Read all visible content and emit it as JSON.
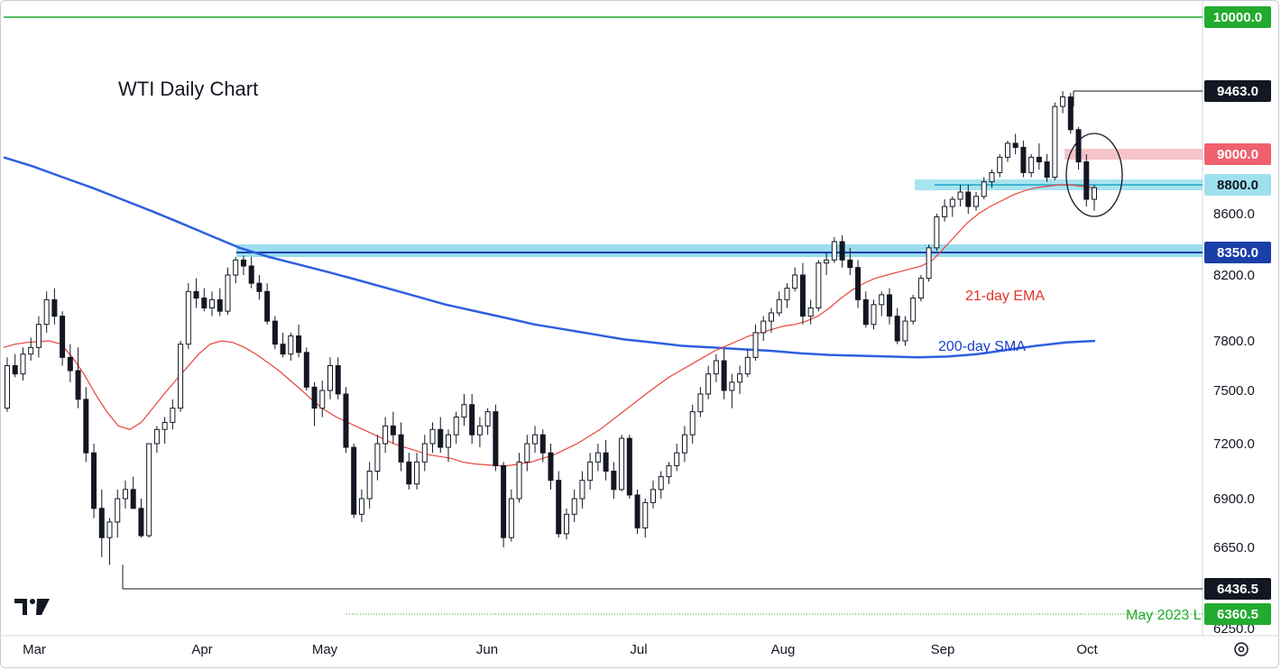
{
  "chart_data": {
    "type": "candlestick",
    "title": "WTI Daily Chart",
    "y_axis_ticks": [
      9463.0,
      9000.0,
      8800.0,
      8600.0,
      8350.0,
      8200.0,
      7800.0,
      7500.0,
      7200.0,
      6900.0,
      6650.0,
      6436.5,
      6360.5,
      6250.0
    ],
    "x_axis_labels": [
      "Mar",
      "Apr",
      "May",
      "Jun",
      "Jul",
      "Aug",
      "Sep",
      "Oct"
    ],
    "axis_range_y": [
      6250,
      10000
    ],
    "grid": false,
    "price_badges": [
      {
        "label": "10000.0",
        "value": 10000.0,
        "style": "green"
      },
      {
        "label": "9463.0",
        "value": 9463.0,
        "style": "black"
      },
      {
        "label": "9000.0",
        "value": 9000.0,
        "style": "red"
      },
      {
        "label": "8800.0",
        "value": 8800.0,
        "style": "cyan"
      },
      {
        "label": "8350.0",
        "value": 8350.0,
        "style": "navy"
      },
      {
        "label": "6436.5",
        "value": 6436.5,
        "style": "black"
      },
      {
        "label": "6360.5",
        "value": 6360.5,
        "style": "green"
      }
    ],
    "horizontal_levels": [
      {
        "value": 10000.0,
        "color": "#22ab2e"
      },
      {
        "value": 9463.0,
        "color": "#131722"
      },
      {
        "value": 9000.0,
        "color": "#f5a9b3"
      },
      {
        "value": 8800.0,
        "color": "#1aa8c8"
      },
      {
        "value": 8350.0,
        "color": "#1a3fa8"
      },
      {
        "value": 6436.5,
        "color": "#131722"
      },
      {
        "value": 6360.5,
        "color": "#22ab2e"
      }
    ],
    "annotations": {
      "ema_label": "21-day EMA",
      "sma_label": "200-day SMA",
      "may_low_label": "May 2023 L"
    },
    "series": [
      {
        "name": "WTI",
        "kind": "ohlc",
        "values": [
          [
            7400,
            7700,
            7380,
            7650
          ],
          [
            7650,
            7720,
            7580,
            7600
          ],
          [
            7600,
            7760,
            7560,
            7720
          ],
          [
            7720,
            7820,
            7680,
            7760
          ],
          [
            7760,
            7950,
            7700,
            7900
          ],
          [
            7900,
            8100,
            7850,
            8050
          ],
          [
            8050,
            8120,
            7900,
            7950
          ],
          [
            7950,
            7980,
            7650,
            7700
          ],
          [
            7700,
            7780,
            7550,
            7620
          ],
          [
            7620,
            7760,
            7400,
            7450
          ],
          [
            7450,
            7520,
            7100,
            7150
          ],
          [
            7150,
            7200,
            6800,
            6850
          ],
          [
            6850,
            6950,
            6600,
            6700
          ],
          [
            6700,
            6800,
            6560,
            6780
          ],
          [
            6780,
            6950,
            6700,
            6900
          ],
          [
            6900,
            7000,
            6850,
            6950
          ],
          [
            6950,
            7020,
            6900,
            6850
          ],
          [
            6850,
            6900,
            6700,
            6710
          ],
          [
            6710,
            7200,
            6700,
            7200
          ],
          [
            7200,
            7300,
            7150,
            7280
          ],
          [
            7280,
            7350,
            7200,
            7320
          ],
          [
            7320,
            7450,
            7280,
            7400
          ],
          [
            7400,
            7800,
            7380,
            7780
          ],
          [
            7780,
            8150,
            7750,
            8100
          ],
          [
            8100,
            8180,
            8000,
            8060
          ],
          [
            8060,
            8120,
            7980,
            8000
          ],
          [
            8000,
            8100,
            7950,
            8050
          ],
          [
            8050,
            8120,
            7950,
            7980
          ],
          [
            7980,
            8250,
            7960,
            8200
          ],
          [
            8200,
            8320,
            8150,
            8300
          ],
          [
            8300,
            8330,
            8200,
            8260
          ],
          [
            8260,
            8320,
            8120,
            8150
          ],
          [
            8150,
            8200,
            8050,
            8100
          ],
          [
            8100,
            8150,
            7900,
            7920
          ],
          [
            7920,
            7950,
            7750,
            7780
          ],
          [
            7780,
            7850,
            7700,
            7720
          ],
          [
            7720,
            7850,
            7680,
            7830
          ],
          [
            7830,
            7900,
            7700,
            7730
          ],
          [
            7730,
            7760,
            7500,
            7520
          ],
          [
            7520,
            7550,
            7300,
            7400
          ],
          [
            7400,
            7560,
            7350,
            7500
          ],
          [
            7500,
            7700,
            7450,
            7650
          ],
          [
            7650,
            7700,
            7450,
            7480
          ],
          [
            7480,
            7520,
            7150,
            7180
          ],
          [
            7180,
            7200,
            6800,
            6820
          ],
          [
            6820,
            6950,
            6780,
            6900
          ],
          [
            6900,
            7100,
            6850,
            7050
          ],
          [
            7050,
            7250,
            7000,
            7200
          ],
          [
            7200,
            7350,
            7150,
            7300
          ],
          [
            7300,
            7380,
            7200,
            7250
          ],
          [
            7250,
            7320,
            7050,
            7100
          ],
          [
            7100,
            7150,
            6950,
            6980
          ],
          [
            6980,
            7150,
            6950,
            7100
          ],
          [
            7100,
            7250,
            7050,
            7200
          ],
          [
            7200,
            7320,
            7150,
            7280
          ],
          [
            7280,
            7350,
            7150,
            7180
          ],
          [
            7180,
            7280,
            7100,
            7250
          ],
          [
            7250,
            7380,
            7200,
            7350
          ],
          [
            7350,
            7480,
            7300,
            7420
          ],
          [
            7420,
            7480,
            7200,
            7250
          ],
          [
            7250,
            7350,
            7180,
            7300
          ],
          [
            7300,
            7400,
            7250,
            7380
          ],
          [
            7380,
            7420,
            7050,
            7080
          ],
          [
            7080,
            7100,
            6650,
            6700
          ],
          [
            6700,
            6950,
            6680,
            6900
          ],
          [
            6900,
            7150,
            6880,
            7100
          ],
          [
            7100,
            7250,
            7050,
            7200
          ],
          [
            7200,
            7300,
            7150,
            7250
          ],
          [
            7250,
            7280,
            7100,
            7150
          ],
          [
            7150,
            7200,
            6950,
            7000
          ],
          [
            7000,
            7050,
            6700,
            6720
          ],
          [
            6720,
            6850,
            6690,
            6820
          ],
          [
            6820,
            6950,
            6780,
            6900
          ],
          [
            6900,
            7050,
            6850,
            7000
          ],
          [
            7000,
            7150,
            6950,
            7100
          ],
          [
            7100,
            7200,
            7050,
            7150
          ],
          [
            7150,
            7220,
            7000,
            7050
          ],
          [
            7050,
            7100,
            6900,
            6950
          ],
          [
            6950,
            7250,
            6940,
            7230
          ],
          [
            7230,
            7250,
            6900,
            6920
          ],
          [
            6920,
            6950,
            6720,
            6750
          ],
          [
            6750,
            6900,
            6700,
            6880
          ],
          [
            6880,
            7000,
            6850,
            6950
          ],
          [
            6950,
            7050,
            6900,
            7020
          ],
          [
            7020,
            7100,
            6980,
            7080
          ],
          [
            7080,
            7200,
            7050,
            7150
          ],
          [
            7150,
            7300,
            7100,
            7250
          ],
          [
            7250,
            7420,
            7200,
            7380
          ],
          [
            7380,
            7520,
            7350,
            7480
          ],
          [
            7480,
            7650,
            7450,
            7600
          ],
          [
            7600,
            7720,
            7550,
            7680
          ],
          [
            7680,
            7750,
            7450,
            7500
          ],
          [
            7500,
            7600,
            7400,
            7550
          ],
          [
            7550,
            7650,
            7480,
            7600
          ],
          [
            7600,
            7750,
            7580,
            7700
          ],
          [
            7700,
            7900,
            7680,
            7850
          ],
          [
            7850,
            7950,
            7800,
            7920
          ],
          [
            7920,
            8000,
            7850,
            7970
          ],
          [
            7970,
            8100,
            7950,
            8050
          ],
          [
            8050,
            8150,
            8000,
            8120
          ],
          [
            8120,
            8250,
            8100,
            8200
          ],
          [
            8200,
            8280,
            7900,
            7950
          ],
          [
            7950,
            8050,
            7900,
            8000
          ],
          [
            8000,
            8300,
            7980,
            8280
          ],
          [
            8280,
            8350,
            8200,
            8300
          ],
          [
            8300,
            8450,
            8280,
            8420
          ],
          [
            8420,
            8460,
            8250,
            8300
          ],
          [
            8300,
            8380,
            8200,
            8250
          ],
          [
            8250,
            8300,
            8000,
            8050
          ],
          [
            8050,
            8100,
            7880,
            7900
          ],
          [
            7900,
            8050,
            7870,
            8020
          ],
          [
            8020,
            8100,
            7950,
            8080
          ],
          [
            8080,
            8120,
            7900,
            7950
          ],
          [
            7950,
            8000,
            7780,
            7800
          ],
          [
            7800,
            7950,
            7770,
            7920
          ],
          [
            7920,
            8080,
            7900,
            8060
          ],
          [
            8060,
            8200,
            8040,
            8180
          ],
          [
            8180,
            8400,
            8160,
            8380
          ],
          [
            8380,
            8600,
            8360,
            8580
          ],
          [
            8580,
            8700,
            8550,
            8650
          ],
          [
            8650,
            8720,
            8580,
            8700
          ],
          [
            8700,
            8800,
            8650,
            8750
          ],
          [
            8750,
            8800,
            8600,
            8650
          ],
          [
            8650,
            8750,
            8620,
            8720
          ],
          [
            8720,
            8850,
            8700,
            8820
          ],
          [
            8820,
            8900,
            8780,
            8880
          ],
          [
            8880,
            9000,
            8850,
            8980
          ],
          [
            8980,
            9100,
            8950,
            9080
          ],
          [
            9080,
            9150,
            9000,
            9050
          ],
          [
            9050,
            9100,
            8850,
            8880
          ],
          [
            8880,
            9000,
            8850,
            8980
          ],
          [
            8980,
            9080,
            8900,
            8950
          ],
          [
            8950,
            9000,
            8820,
            8850
          ],
          [
            8850,
            9380,
            8830,
            9350
          ],
          [
            9350,
            9463,
            9300,
            9420
          ],
          [
            9420,
            9450,
            9150,
            9180
          ],
          [
            9180,
            9200,
            8900,
            8950
          ],
          [
            8950,
            9000,
            8650,
            8700
          ],
          [
            8700,
            8800,
            8620,
            8780
          ]
        ]
      },
      {
        "name": "21-day EMA",
        "kind": "line",
        "values": [
          7760,
          7780,
          7790,
          7795,
          7800,
          7780,
          7700,
          7600,
          7480,
          7380,
          7300,
          7280,
          7320,
          7400,
          7480,
          7560,
          7640,
          7720,
          7780,
          7800,
          7790,
          7760,
          7720,
          7670,
          7620,
          7560,
          7500,
          7440,
          7390,
          7350,
          7320,
          7290,
          7260,
          7230,
          7200,
          7180,
          7160,
          7140,
          7130,
          7120,
          7100,
          7090,
          7085,
          7080,
          7080,
          7090,
          7100,
          7120,
          7140,
          7170,
          7200,
          7240,
          7280,
          7330,
          7380,
          7430,
          7480,
          7530,
          7580,
          7620,
          7660,
          7700,
          7740,
          7770,
          7800,
          7830,
          7850,
          7870,
          7890,
          7900,
          7920,
          7950,
          8000,
          8060,
          8110,
          8150,
          8180,
          8200,
          8220,
          8240,
          8260,
          8300,
          8380,
          8460,
          8540,
          8600,
          8650,
          8690,
          8730,
          8760,
          8780,
          8790,
          8800,
          8800,
          8790,
          8780
        ]
      },
      {
        "name": "200-day SMA",
        "kind": "line",
        "values": [
          8980,
          8920,
          8850,
          8780,
          8700,
          8620,
          8540,
          8460,
          8380,
          8320,
          8270,
          8220,
          8170,
          8120,
          8070,
          8020,
          7980,
          7940,
          7900,
          7870,
          7840,
          7810,
          7790,
          7770,
          7760,
          7750,
          7740,
          7725,
          7715,
          7710,
          7705,
          7700,
          7705,
          7720,
          7745,
          7770,
          7790,
          7800
        ]
      }
    ]
  }
}
